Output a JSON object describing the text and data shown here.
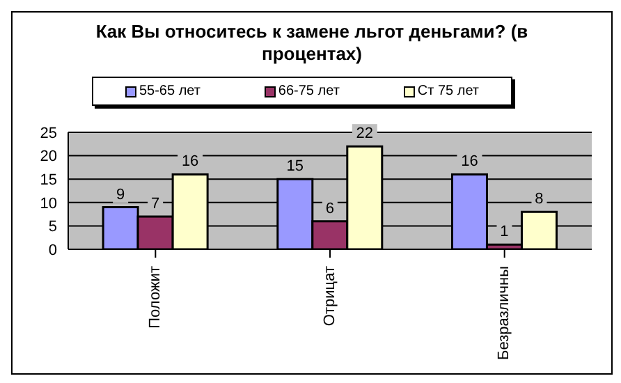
{
  "chart_data": {
    "type": "bar",
    "title": "Как Вы относитесь к замене льгот деньгами? (в процентах)",
    "categories": [
      "Положит",
      "Отрицат",
      "Безразличны"
    ],
    "series": [
      {
        "name": "55-65 лет",
        "color": "#9999ff",
        "values": [
          9,
          15,
          16
        ]
      },
      {
        "name": "66-75 лет",
        "color": "#993366",
        "values": [
          7,
          6,
          1
        ]
      },
      {
        "name": "Ст 75 лет",
        "color": "#ffffcc",
        "values": [
          16,
          22,
          8
        ]
      }
    ],
    "ylim": [
      0,
      25
    ],
    "yticks": [
      0,
      5,
      10,
      15,
      20,
      25
    ],
    "grid": "y",
    "legend": "top",
    "data_labels": true
  }
}
